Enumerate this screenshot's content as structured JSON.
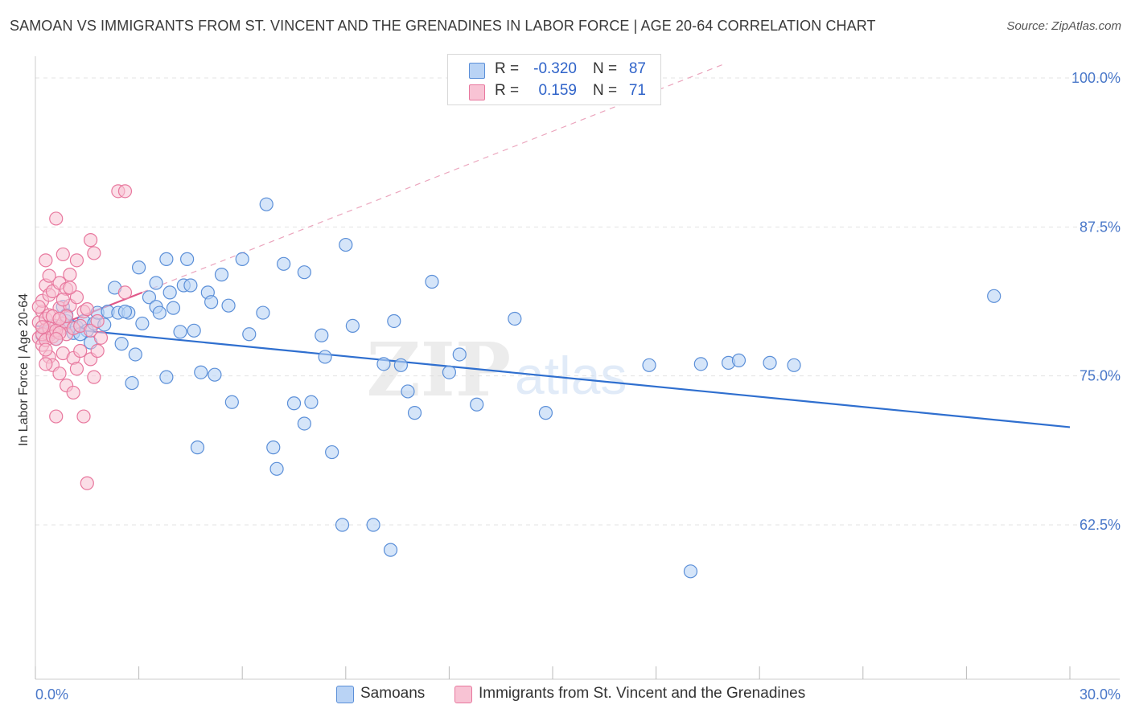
{
  "title": "SAMOAN VS IMMIGRANTS FROM ST. VINCENT AND THE GRENADINES IN LABOR FORCE | AGE 20-64 CORRELATION CHART",
  "source": "Source: ZipAtlas.com",
  "watermark": {
    "zip": "ZIP",
    "atlas": "atlas"
  },
  "legend": {
    "r_label": "R =",
    "n_label": "N =",
    "rows": [
      {
        "r": "-0.320",
        "n": "87"
      },
      {
        "r": "0.159",
        "n": "71"
      }
    ]
  },
  "colors": {
    "samoans_fill": "#b9d3f5",
    "samoans_stroke": "#5b8fd8",
    "samoans_line": "#2f6fcf",
    "svg_fill": "#f8c3d4",
    "svg_stroke": "#e8789e",
    "svg_line": "#e0588a",
    "tick_text": "#4a78c9",
    "grid": "#e3e3e3"
  },
  "chart_data": {
    "type": "scatter",
    "title": "SAMOAN VS IMMIGRANTS FROM ST. VINCENT AND THE GRENADINES IN LABOR FORCE | AGE 20-64 CORRELATION CHART",
    "xlabel": "",
    "ylabel": "In Labor Force | Age 20-64",
    "xlim": [
      0,
      30
    ],
    "ylim": [
      50,
      102
    ],
    "x_tick_labels": [
      "0.0%",
      "30.0%"
    ],
    "y_ticks": [
      62.5,
      75.0,
      87.5,
      100.0
    ],
    "y_tick_labels": [
      "62.5%",
      "75.0%",
      "87.5%",
      "100.0%"
    ],
    "grid": true,
    "legend_position": "bottom",
    "series": [
      {
        "name": "Samoans",
        "r": -0.32,
        "n": 87,
        "trend": {
          "x": [
            0.0,
            30.0
          ],
          "y": [
            79.2,
            70.7
          ]
        },
        "points": [
          [
            0.2,
            78.4
          ],
          [
            0.4,
            78.7
          ],
          [
            0.5,
            79.2
          ],
          [
            0.6,
            78.1
          ],
          [
            0.7,
            78.9
          ],
          [
            0.8,
            80.8
          ],
          [
            0.9,
            79.6
          ],
          [
            1.0,
            79.2
          ],
          [
            1.1,
            78.6
          ],
          [
            1.2,
            79.1
          ],
          [
            1.4,
            79.6
          ],
          [
            1.5,
            78.8
          ],
          [
            1.7,
            79.4
          ],
          [
            1.8,
            80.3
          ],
          [
            2.0,
            79.3
          ],
          [
            2.1,
            80.4
          ],
          [
            2.3,
            82.4
          ],
          [
            2.4,
            80.3
          ],
          [
            2.5,
            77.7
          ],
          [
            2.7,
            80.3
          ],
          [
            2.8,
            74.4
          ],
          [
            2.9,
            76.8
          ],
          [
            3.0,
            84.1
          ],
          [
            3.1,
            79.4
          ],
          [
            3.3,
            81.6
          ],
          [
            3.5,
            82.8
          ],
          [
            3.5,
            80.8
          ],
          [
            3.6,
            80.3
          ],
          [
            3.8,
            74.9
          ],
          [
            3.8,
            84.8
          ],
          [
            3.9,
            82.0
          ],
          [
            4.0,
            80.7
          ],
          [
            4.2,
            78.7
          ],
          [
            4.3,
            82.6
          ],
          [
            4.4,
            84.8
          ],
          [
            4.5,
            82.6
          ],
          [
            4.6,
            78.8
          ],
          [
            4.7,
            69.0
          ],
          [
            4.8,
            75.3
          ],
          [
            5.0,
            82.0
          ],
          [
            5.1,
            81.2
          ],
          [
            5.2,
            75.1
          ],
          [
            5.4,
            83.5
          ],
          [
            5.7,
            72.8
          ],
          [
            6.0,
            84.8
          ],
          [
            6.2,
            78.5
          ],
          [
            6.6,
            80.3
          ],
          [
            6.7,
            89.4
          ],
          [
            6.9,
            69.0
          ],
          [
            7.0,
            67.2
          ],
          [
            7.2,
            84.4
          ],
          [
            7.5,
            72.7
          ],
          [
            7.8,
            83.7
          ],
          [
            7.8,
            71.0
          ],
          [
            8.0,
            72.8
          ],
          [
            8.3,
            78.4
          ],
          [
            8.4,
            76.6
          ],
          [
            8.6,
            68.6
          ],
          [
            8.9,
            62.5
          ],
          [
            9.0,
            86.0
          ],
          [
            9.2,
            79.2
          ],
          [
            9.8,
            62.5
          ],
          [
            10.1,
            76.0
          ],
          [
            10.3,
            60.4
          ],
          [
            10.4,
            79.6
          ],
          [
            10.6,
            75.9
          ],
          [
            10.8,
            73.7
          ],
          [
            11.0,
            71.9
          ],
          [
            11.5,
            82.9
          ],
          [
            12.0,
            75.3
          ],
          [
            12.3,
            76.8
          ],
          [
            12.8,
            72.6
          ],
          [
            13.9,
            79.8
          ],
          [
            14.8,
            71.9
          ],
          [
            17.8,
            75.9
          ],
          [
            19.0,
            58.6
          ],
          [
            19.3,
            76.0
          ],
          [
            20.1,
            76.1
          ],
          [
            20.4,
            76.3
          ],
          [
            21.3,
            76.1
          ],
          [
            22.0,
            75.9
          ],
          [
            27.8,
            81.7
          ],
          [
            1.3,
            78.5
          ],
          [
            0.9,
            80.1
          ],
          [
            2.6,
            80.4
          ],
          [
            1.6,
            77.8
          ],
          [
            5.6,
            80.9
          ]
        ]
      },
      {
        "name": "Immigrants from St. Vincent and the Grenadines",
        "r": 0.159,
        "n": 71,
        "trend": {
          "x": [
            0.0,
            3.1
          ],
          "y": [
            78.5,
            82.0
          ]
        },
        "trend_extended": {
          "x": [
            0.0,
            20.0
          ],
          "y": [
            78.5,
            101.2
          ]
        },
        "points": [
          [
            0.1,
            78.2
          ],
          [
            0.1,
            79.5
          ],
          [
            0.2,
            80.4
          ],
          [
            0.2,
            77.6
          ],
          [
            0.2,
            81.3
          ],
          [
            0.3,
            78.9
          ],
          [
            0.3,
            79.8
          ],
          [
            0.3,
            82.6
          ],
          [
            0.3,
            84.7
          ],
          [
            0.4,
            76.6
          ],
          [
            0.4,
            78.4
          ],
          [
            0.4,
            80.1
          ],
          [
            0.4,
            81.8
          ],
          [
            0.5,
            75.9
          ],
          [
            0.5,
            78.7
          ],
          [
            0.5,
            82.1
          ],
          [
            0.6,
            79.2
          ],
          [
            0.6,
            88.2
          ],
          [
            0.6,
            71.6
          ],
          [
            0.7,
            75.2
          ],
          [
            0.7,
            80.7
          ],
          [
            0.7,
            82.8
          ],
          [
            0.7,
            78.9
          ],
          [
            0.8,
            76.9
          ],
          [
            0.8,
            79.4
          ],
          [
            0.8,
            85.2
          ],
          [
            0.9,
            82.3
          ],
          [
            0.9,
            74.2
          ],
          [
            0.9,
            78.5
          ],
          [
            1.0,
            80.9
          ],
          [
            1.0,
            83.5
          ],
          [
            1.1,
            76.5
          ],
          [
            1.1,
            79.0
          ],
          [
            1.1,
            73.6
          ],
          [
            1.2,
            81.6
          ],
          [
            1.2,
            84.7
          ],
          [
            1.3,
            77.1
          ],
          [
            1.3,
            79.2
          ],
          [
            1.4,
            71.6
          ],
          [
            1.4,
            80.4
          ],
          [
            1.5,
            66.0
          ],
          [
            1.6,
            76.4
          ],
          [
            1.6,
            78.8
          ],
          [
            1.6,
            86.4
          ],
          [
            1.7,
            74.9
          ],
          [
            1.8,
            79.6
          ],
          [
            1.8,
            77.1
          ],
          [
            2.4,
            90.5
          ],
          [
            2.6,
            90.5
          ],
          [
            2.6,
            82.0
          ],
          [
            0.2,
            78.5
          ],
          [
            0.3,
            78.0
          ],
          [
            0.4,
            79.0
          ],
          [
            0.5,
            78.3
          ],
          [
            0.6,
            78.8
          ],
          [
            0.7,
            78.6
          ],
          [
            0.5,
            80.0
          ],
          [
            0.3,
            77.2
          ],
          [
            0.9,
            80.0
          ],
          [
            1.0,
            82.4
          ],
          [
            1.2,
            75.6
          ],
          [
            0.8,
            81.4
          ],
          [
            0.2,
            79.1
          ],
          [
            0.4,
            83.4
          ],
          [
            0.6,
            78.1
          ],
          [
            0.7,
            79.8
          ],
          [
            1.5,
            80.6
          ],
          [
            1.9,
            78.2
          ],
          [
            0.1,
            80.8
          ],
          [
            0.3,
            76.0
          ],
          [
            1.7,
            85.3
          ]
        ]
      }
    ]
  }
}
